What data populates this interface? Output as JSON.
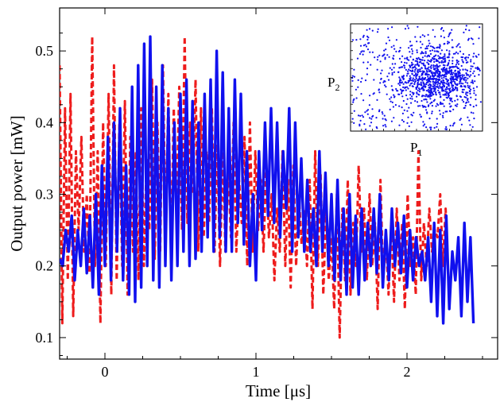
{
  "chart_data": [
    {
      "type": "line",
      "title": "",
      "xlabel": "Time [μs]",
      "ylabel": "Output power [mW]",
      "xlim": [
        -0.3,
        2.6
      ],
      "ylim": [
        0.07,
        0.56
      ],
      "xticks": [
        0,
        1,
        2
      ],
      "xtick_labels": [
        "0",
        "1",
        "2"
      ],
      "yticks": [
        0.1,
        0.2,
        0.3,
        0.4,
        0.5
      ],
      "ytick_labels": [
        "0.1",
        "0.2",
        "0.3",
        "0.4",
        "0.5"
      ],
      "grid": false,
      "legend": "none",
      "series": [
        {
          "color": "#1010ee",
          "line_style": "solid",
          "sample_interval_us": 0.02,
          "x_start": -0.3,
          "values": [
            0.21,
            0.2,
            0.25,
            0.22,
            0.27,
            0.18,
            0.25,
            0.2,
            0.28,
            0.19,
            0.27,
            0.17,
            0.3,
            0.16,
            0.34,
            0.2,
            0.38,
            0.18,
            0.4,
            0.22,
            0.42,
            0.18,
            0.34,
            0.16,
            0.45,
            0.15,
            0.48,
            0.17,
            0.51,
            0.2,
            0.52,
            0.18,
            0.45,
            0.17,
            0.48,
            0.2,
            0.42,
            0.18,
            0.4,
            0.2,
            0.44,
            0.22,
            0.46,
            0.2,
            0.43,
            0.21,
            0.4,
            0.22,
            0.44,
            0.24,
            0.46,
            0.22,
            0.5,
            0.24,
            0.47,
            0.22,
            0.42,
            0.22,
            0.46,
            0.26,
            0.44,
            0.23,
            0.36,
            0.2,
            0.3,
            0.18,
            0.36,
            0.25,
            0.4,
            0.27,
            0.42,
            0.26,
            0.4,
            0.24,
            0.36,
            0.28,
            0.42,
            0.22,
            0.4,
            0.24,
            0.35,
            0.22,
            0.32,
            0.22,
            0.28,
            0.2,
            0.36,
            0.22,
            0.33,
            0.2,
            0.3,
            0.18,
            0.32,
            0.18,
            0.28,
            0.16,
            0.3,
            0.17,
            0.27,
            0.16,
            0.28,
            0.18,
            0.26,
            0.2,
            0.28,
            0.19,
            0.3,
            0.17,
            0.25,
            0.18,
            0.28,
            0.2,
            0.26,
            0.19,
            0.27,
            0.17,
            0.25,
            0.18,
            0.24,
            0.2,
            0.22,
            0.18,
            0.24,
            0.15,
            0.26,
            0.13,
            0.25,
            0.12,
            0.27,
            0.14,
            0.22,
            0.18,
            0.24,
            0.13,
            0.26,
            0.15,
            0.24,
            0.12
          ]
        },
        {
          "color": "#ee1c1c",
          "line_style": "dashed",
          "sample_interval_us": 0.018,
          "x_start": -0.3,
          "values": [
            0.48,
            0.12,
            0.42,
            0.18,
            0.44,
            0.13,
            0.36,
            0.25,
            0.38,
            0.22,
            0.3,
            0.19,
            0.52,
            0.2,
            0.36,
            0.12,
            0.4,
            0.2,
            0.44,
            0.16,
            0.48,
            0.18,
            0.4,
            0.2,
            0.43,
            0.16,
            0.38,
            0.22,
            0.36,
            0.18,
            0.42,
            0.2,
            0.35,
            0.25,
            0.46,
            0.21,
            0.4,
            0.22,
            0.48,
            0.24,
            0.44,
            0.22,
            0.42,
            0.28,
            0.45,
            0.25,
            0.52,
            0.26,
            0.4,
            0.3,
            0.46,
            0.22,
            0.42,
            0.24,
            0.36,
            0.26,
            0.42,
            0.22,
            0.37,
            0.2,
            0.36,
            0.22,
            0.34,
            0.24,
            0.4,
            0.22,
            0.32,
            0.26,
            0.38,
            0.2,
            0.4,
            0.22,
            0.36,
            0.25,
            0.32,
            0.22,
            0.34,
            0.24,
            0.3,
            0.18,
            0.28,
            0.22,
            0.36,
            0.2,
            0.32,
            0.17,
            0.34,
            0.2,
            0.3,
            0.23,
            0.28,
            0.2,
            0.32,
            0.14,
            0.36,
            0.2,
            0.33,
            0.16,
            0.28,
            0.18,
            0.24,
            0.14,
            0.3,
            0.1,
            0.28,
            0.18,
            0.32,
            0.16,
            0.26,
            0.2,
            0.34,
            0.22,
            0.28,
            0.18,
            0.3,
            0.2,
            0.26,
            0.14,
            0.32,
            0.18,
            0.24,
            0.16,
            0.26,
            0.15,
            0.28,
            0.18,
            0.26,
            0.14,
            0.3,
            0.2,
            0.24,
            0.16,
            0.36,
            0.18,
            0.26,
            0.2,
            0.28,
            0.22,
            0.25,
            0.24,
            0.3,
            0.2,
            0.28,
            0.18
          ]
        }
      ]
    },
    {
      "type": "scatter",
      "role": "inset",
      "xlabel": "P",
      "xlabel_subscript": "1",
      "ylabel": "P",
      "ylabel_subscript": "2",
      "grid": false,
      "series": [
        {
          "color": "#1010ee",
          "marker": "dot",
          "n_points": 1200,
          "x_center": 0.65,
          "y_center": 0.5,
          "x_spread": 0.28,
          "y_spread": 0.24,
          "x_range": [
            0,
            1
          ],
          "y_range": [
            0,
            1
          ]
        }
      ]
    }
  ]
}
